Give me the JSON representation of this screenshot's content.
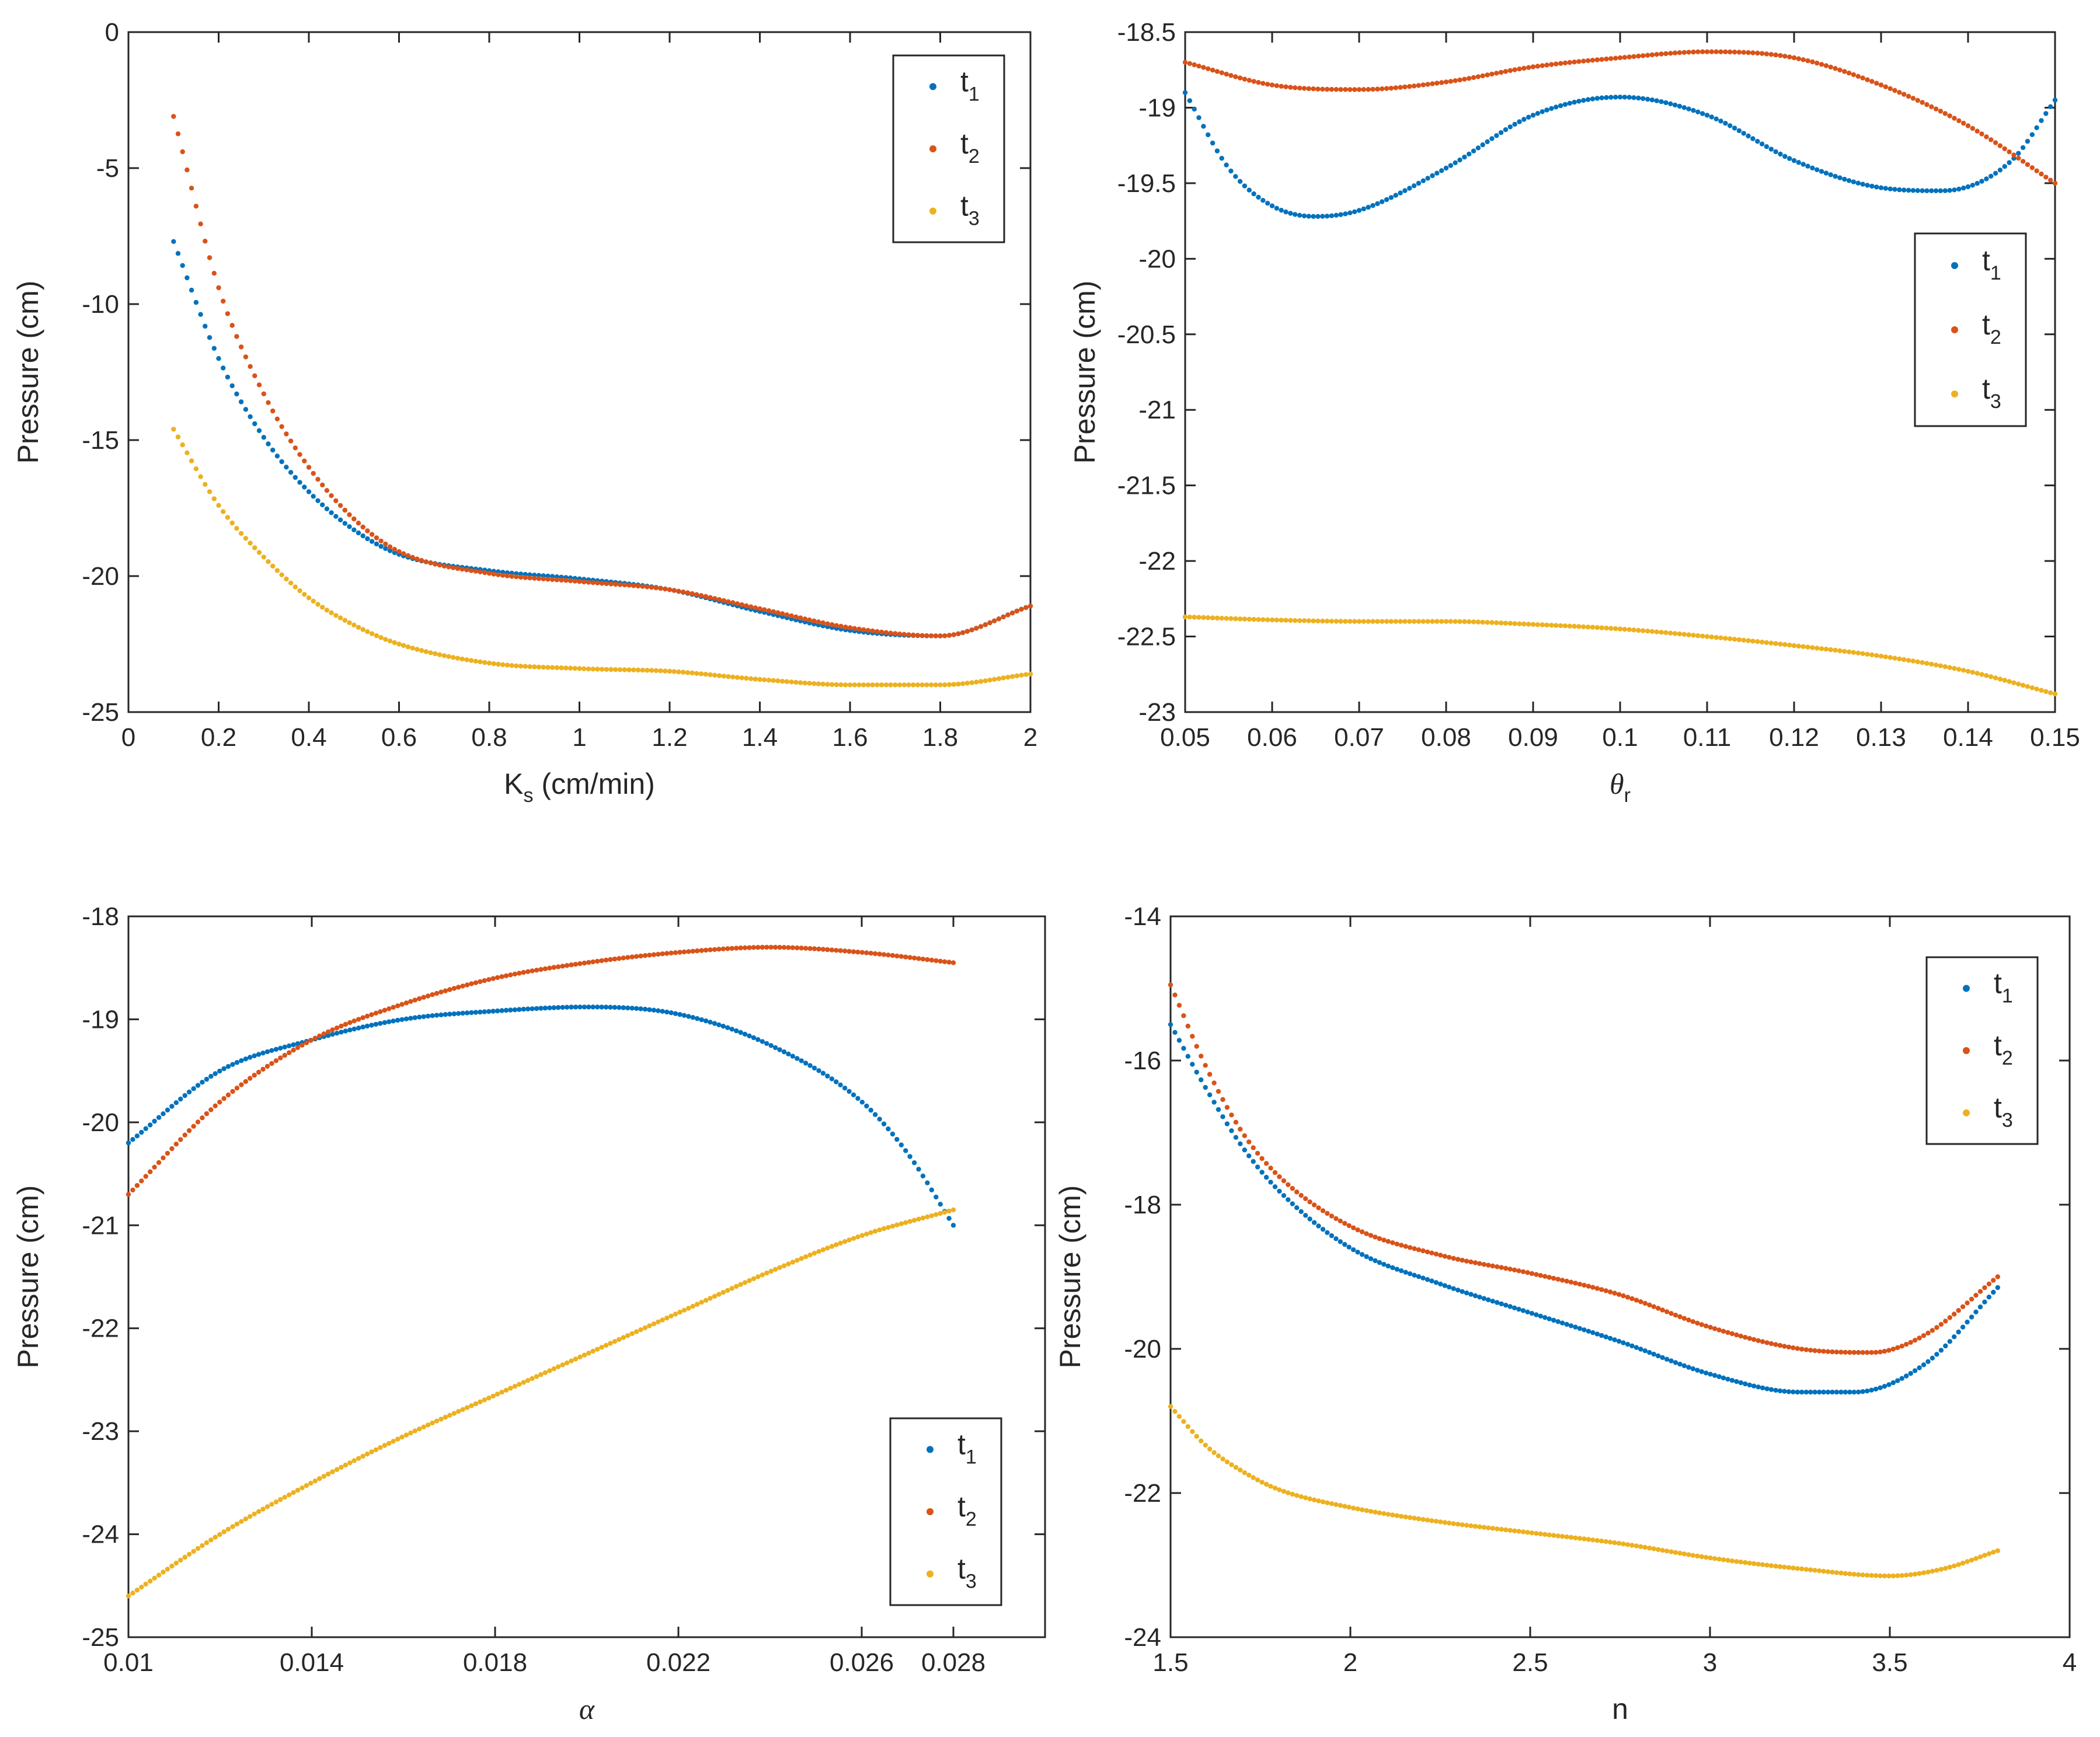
{
  "colors": {
    "t1": "#0072BD",
    "t2": "#D95319",
    "t3": "#EDB120",
    "axis": "#262626"
  },
  "legend_labels": [
    {
      "base": "t",
      "sub": "1"
    },
    {
      "base": "t",
      "sub": "2"
    },
    {
      "base": "t",
      "sub": "3"
    }
  ],
  "chart_data": [
    {
      "type": "scatter",
      "xlabel": {
        "base": "K",
        "sub": "s",
        "rest": " (cm/min)"
      },
      "ylabel": "Pressure (cm)",
      "xlim": [
        0,
        2
      ],
      "ylim": [
        -25,
        0
      ],
      "xticks": [
        0,
        0.2,
        0.4,
        0.6,
        0.8,
        1,
        1.2,
        1.4,
        1.6,
        1.8,
        2
      ],
      "xtick_labels": [
        "0",
        "0.2",
        "0.4",
        "0.6",
        "0.8",
        "1",
        "1.2",
        "1.4",
        "1.6",
        "1.8",
        "2"
      ],
      "yticks": [
        -25,
        -20,
        -15,
        -10,
        -5,
        0
      ],
      "ytick_labels": [
        "-25",
        "-20",
        "-15",
        "-10",
        "-5",
        "0"
      ],
      "legend": "top-right",
      "series": [
        {
          "key": "t1",
          "x": [
            0.1,
            0.2,
            0.3,
            0.4,
            0.5,
            0.6,
            0.8,
            1.0,
            1.2,
            1.4,
            1.6,
            1.8,
            2.0
          ],
          "y": [
            -7.7,
            -12.0,
            -14.9,
            -16.9,
            -18.3,
            -19.2,
            -19.8,
            -20.1,
            -20.5,
            -21.3,
            -22.0,
            -22.2,
            -21.1
          ]
        },
        {
          "key": "t2",
          "x": [
            0.1,
            0.2,
            0.3,
            0.4,
            0.5,
            0.6,
            0.8,
            1.0,
            1.2,
            1.4,
            1.6,
            1.8,
            2.0
          ],
          "y": [
            -3.1,
            -9.4,
            -13.3,
            -16.0,
            -17.9,
            -19.1,
            -19.9,
            -20.2,
            -20.5,
            -21.2,
            -21.9,
            -22.2,
            -21.1
          ]
        },
        {
          "key": "t3",
          "x": [
            0.1,
            0.2,
            0.3,
            0.4,
            0.5,
            0.6,
            0.8,
            1.0,
            1.2,
            1.4,
            1.6,
            1.8,
            2.0
          ],
          "y": [
            -14.6,
            -17.4,
            -19.3,
            -20.8,
            -21.8,
            -22.5,
            -23.2,
            -23.4,
            -23.5,
            -23.8,
            -24.0,
            -24.0,
            -23.6
          ]
        }
      ]
    },
    {
      "type": "scatter",
      "xlabel": {
        "base": "θ",
        "sub": "r",
        "rest": "",
        "italic": true
      },
      "ylabel": "Pressure (cm)",
      "xlim": [
        0.05,
        0.15
      ],
      "ylim": [
        -23,
        -18.5
      ],
      "xticks": [
        0.05,
        0.06,
        0.07,
        0.08,
        0.09,
        0.1,
        0.11,
        0.12,
        0.13,
        0.14,
        0.15
      ],
      "xtick_labels": [
        "0.05",
        "0.06",
        "0.07",
        "0.08",
        "0.09",
        "0.1",
        "0.11",
        "0.12",
        "0.13",
        "0.14",
        "0.15"
      ],
      "yticks": [
        -23,
        -22.5,
        -22,
        -21.5,
        -21,
        -20.5,
        -20,
        -19.5,
        -19,
        -18.5
      ],
      "ytick_labels": [
        "-23",
        "-22.5",
        "-22",
        "-21.5",
        "-21",
        "-20.5",
        "-20",
        "-19.5",
        "-19",
        "-18.5"
      ],
      "legend": "middle-right",
      "series": [
        {
          "key": "t1",
          "x": [
            0.05,
            0.055,
            0.06,
            0.065,
            0.07,
            0.08,
            0.09,
            0.1,
            0.11,
            0.12,
            0.13,
            0.137,
            0.145,
            0.15
          ],
          "y": [
            -18.9,
            -19.4,
            -19.65,
            -19.72,
            -19.68,
            -19.4,
            -19.05,
            -18.93,
            -19.05,
            -19.35,
            -19.53,
            -19.55,
            -19.35,
            -18.95
          ]
        },
        {
          "key": "t2",
          "x": [
            0.05,
            0.06,
            0.07,
            0.08,
            0.09,
            0.1,
            0.11,
            0.12,
            0.13,
            0.14,
            0.15
          ],
          "y": [
            -18.7,
            -18.85,
            -18.88,
            -18.83,
            -18.73,
            -18.67,
            -18.63,
            -18.67,
            -18.85,
            -19.12,
            -19.5
          ]
        },
        {
          "key": "t3",
          "x": [
            0.05,
            0.06,
            0.07,
            0.08,
            0.09,
            0.1,
            0.11,
            0.12,
            0.13,
            0.14,
            0.15
          ],
          "y": [
            -22.37,
            -22.39,
            -22.4,
            -22.4,
            -22.42,
            -22.45,
            -22.5,
            -22.56,
            -22.63,
            -22.73,
            -22.88
          ]
        }
      ]
    },
    {
      "type": "scatter",
      "xlabel": {
        "base": "α",
        "sub": "",
        "rest": "",
        "italic": true
      },
      "ylabel": "Pressure (cm)",
      "xlim": [
        0.01,
        0.03
      ],
      "ylim": [
        -25,
        -18
      ],
      "xticks": [
        0.01,
        0.014,
        0.018,
        0.022,
        0.026,
        0.028
      ],
      "xtick_labels": [
        "0.01",
        "0.014",
        "0.018",
        "0.022",
        "0.026",
        "0.028"
      ],
      "yticks": [
        -25,
        -24,
        -23,
        -22,
        -21,
        -20,
        -19,
        -18
      ],
      "ytick_labels": [
        "-25",
        "-24",
        "-23",
        "-22",
        "-21",
        "-20",
        "-19",
        "-18"
      ],
      "legend": "bottom-right",
      "series": [
        {
          "key": "t1",
          "x": [
            0.01,
            0.012,
            0.014,
            0.016,
            0.018,
            0.02,
            0.022,
            0.024,
            0.026,
            0.027,
            0.028
          ],
          "y": [
            -20.2,
            -19.5,
            -19.2,
            -19.0,
            -18.92,
            -18.88,
            -18.95,
            -19.25,
            -19.8,
            -20.3,
            -21.0
          ]
        },
        {
          "key": "t2",
          "x": [
            0.01,
            0.012,
            0.014,
            0.016,
            0.018,
            0.02,
            0.022,
            0.024,
            0.026,
            0.028
          ],
          "y": [
            -20.7,
            -19.8,
            -19.2,
            -18.85,
            -18.6,
            -18.45,
            -18.35,
            -18.3,
            -18.35,
            -18.45
          ]
        },
        {
          "key": "t3",
          "x": [
            0.01,
            0.012,
            0.014,
            0.016,
            0.018,
            0.02,
            0.022,
            0.024,
            0.026,
            0.028
          ],
          "y": [
            -24.6,
            -24.0,
            -23.5,
            -23.05,
            -22.65,
            -22.25,
            -21.85,
            -21.45,
            -21.1,
            -20.85
          ]
        }
      ]
    },
    {
      "type": "scatter",
      "xlabel": {
        "base": "n",
        "sub": "",
        "rest": ""
      },
      "ylabel": "Pressure (cm)",
      "xlim": [
        1.5,
        4
      ],
      "ylim": [
        -24,
        -14
      ],
      "xticks": [
        1.5,
        2,
        2.5,
        3,
        3.5,
        4
      ],
      "xtick_labels": [
        "1.5",
        "2",
        "2.5",
        "3",
        "3.5",
        "4"
      ],
      "yticks": [
        -24,
        -22,
        -20,
        -18,
        -16,
        -14
      ],
      "ytick_labels": [
        "-24",
        "-22",
        "-20",
        "-18",
        "-16",
        "-14"
      ],
      "legend": "top-right",
      "series": [
        {
          "key": "t1",
          "x": [
            1.5,
            1.6,
            1.7,
            1.8,
            2.0,
            2.25,
            2.5,
            2.75,
            3.0,
            3.25,
            3.4,
            3.6,
            3.8
          ],
          "y": [
            -15.5,
            -16.4,
            -17.2,
            -17.8,
            -18.6,
            -19.1,
            -19.5,
            -19.9,
            -20.35,
            -20.6,
            -20.6,
            -20.2,
            -19.15
          ]
        },
        {
          "key": "t2",
          "x": [
            1.5,
            1.6,
            1.7,
            1.8,
            2.0,
            2.25,
            2.5,
            2.75,
            3.0,
            3.25,
            3.45,
            3.6,
            3.8
          ],
          "y": [
            -14.95,
            -16.1,
            -17.0,
            -17.6,
            -18.3,
            -18.7,
            -18.95,
            -19.25,
            -19.7,
            -20.0,
            -20.05,
            -19.8,
            -19.0
          ]
        },
        {
          "key": "t3",
          "x": [
            1.5,
            1.6,
            1.7,
            1.8,
            2.0,
            2.25,
            2.5,
            2.75,
            3.0,
            3.25,
            3.5,
            3.65,
            3.8
          ],
          "y": [
            -20.8,
            -21.35,
            -21.7,
            -21.95,
            -22.2,
            -22.4,
            -22.55,
            -22.7,
            -22.9,
            -23.05,
            -23.15,
            -23.05,
            -22.8
          ]
        }
      ]
    }
  ]
}
